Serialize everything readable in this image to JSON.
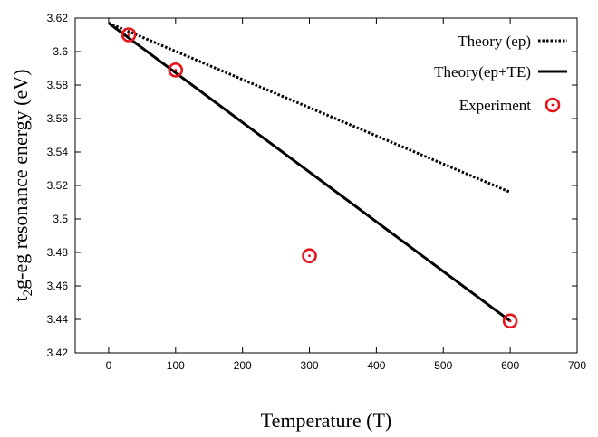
{
  "chart_data": {
    "type": "line",
    "xlabel": "Temperature (T)",
    "ylabel_main": "t",
    "ylabel_sub": "2",
    "ylabel_rest": "g-eg resonance energy (eV)",
    "xlim": [
      -50,
      700
    ],
    "ylim": [
      3.42,
      3.62
    ],
    "x_ticks": [
      "0",
      "100",
      "200",
      "300",
      "400",
      "500",
      "600",
      "700"
    ],
    "y_ticks": [
      "3.42",
      "3.44",
      "3.46",
      "3.48",
      "3.5",
      "3.52",
      "3.54",
      "3.56",
      "3.58",
      "3.6",
      "3.62"
    ],
    "legend_position": "top-right",
    "grid": false,
    "series": [
      {
        "name": "Theory (ep)",
        "style": "dotted",
        "color": "#000000",
        "points": [
          [
            0,
            3.617
          ],
          [
            600,
            3.516
          ]
        ]
      },
      {
        "name": "Theory(ep+TE)",
        "style": "solid",
        "color": "#000000",
        "points": [
          [
            0,
            3.617
          ],
          [
            600,
            3.439
          ]
        ]
      },
      {
        "name": "Experiment",
        "style": "marker",
        "color": "#e8141c",
        "points": [
          [
            30,
            3.61
          ],
          [
            100,
            3.589
          ],
          [
            300,
            3.478
          ],
          [
            600,
            3.439
          ]
        ]
      }
    ]
  }
}
